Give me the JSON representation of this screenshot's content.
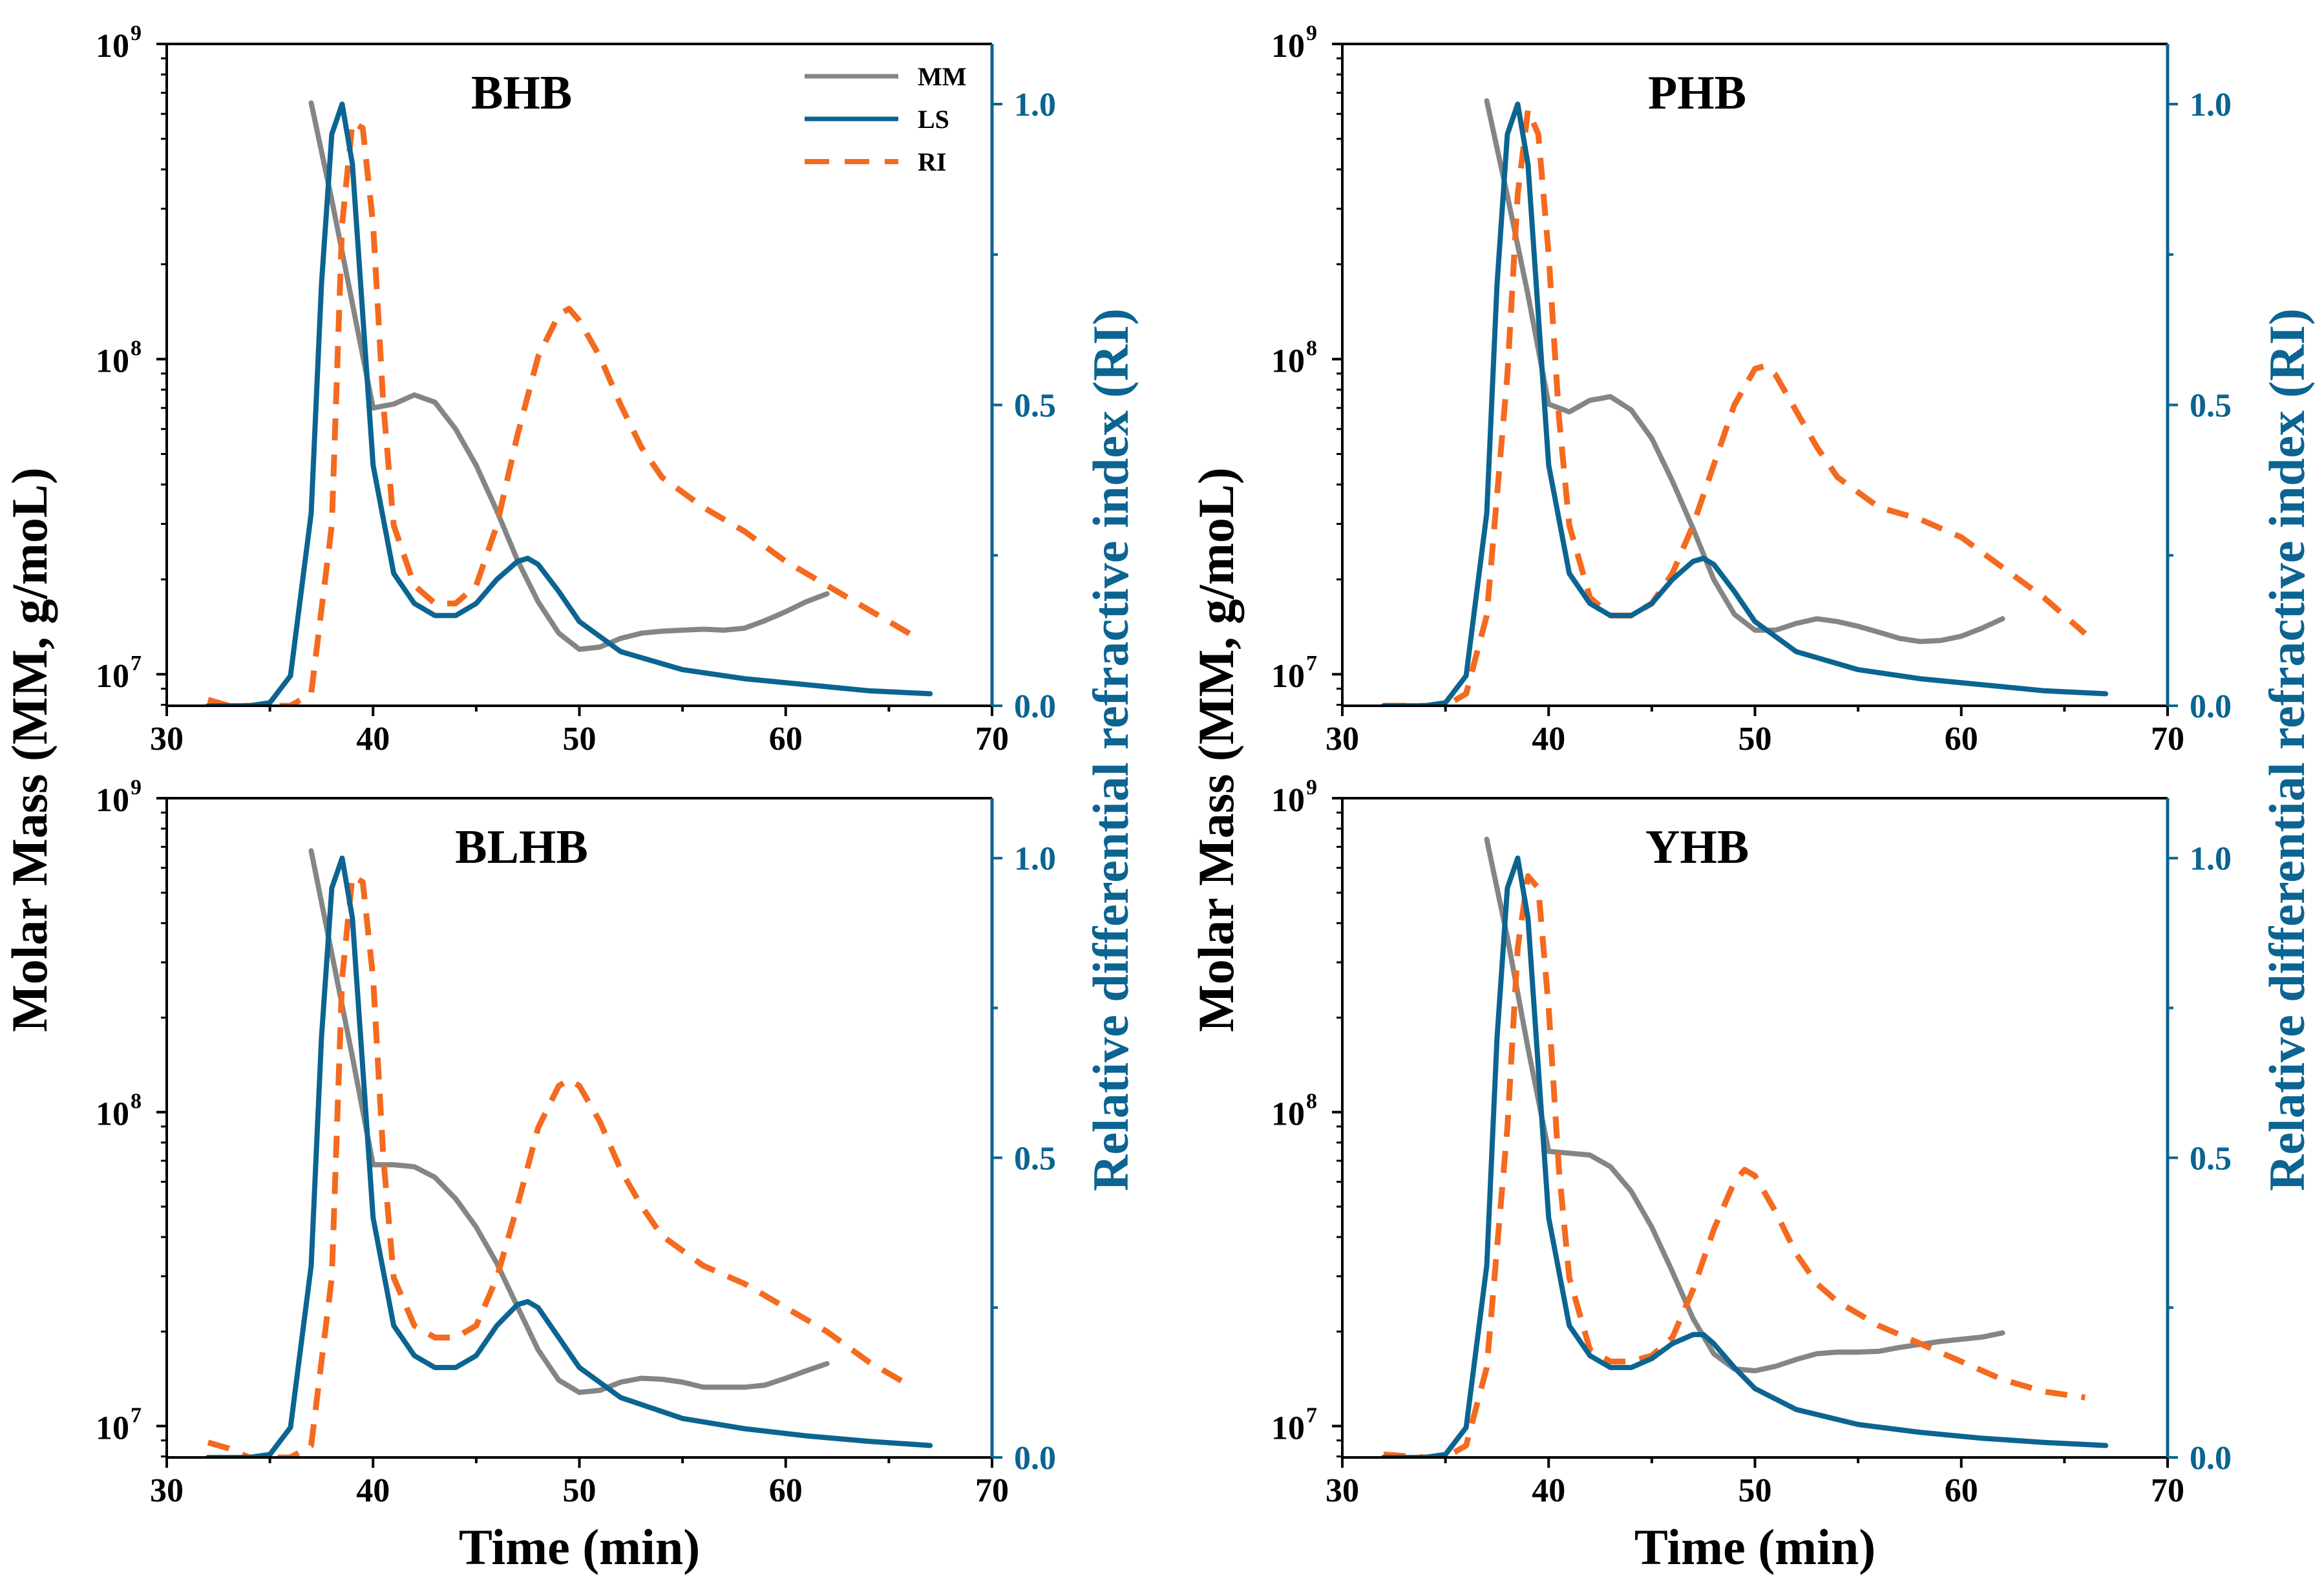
{
  "colors": {
    "mm": "#858585",
    "ls": "#0b6491",
    "ri": "#f46a1f",
    "axis_right": "#0b6491",
    "text": "#000000"
  },
  "axes": {
    "xlabel": "Time (min)",
    "ylabel_left": "Molar Mass (MM, g/moL)",
    "ylabel_right": "Relative differential refractive index (RI)",
    "xlim": [
      30,
      70
    ],
    "xticks": [
      "30",
      "40",
      "50",
      "60",
      "70"
    ],
    "xtick_values": [
      30,
      40,
      50,
      60,
      70
    ],
    "ylim_left_log10": [
      6.9,
      9.0
    ],
    "yticks_left": [
      {
        "base": "10",
        "exp": "7",
        "value": 7
      },
      {
        "base": "10",
        "exp": "8",
        "value": 8
      },
      {
        "base": "10",
        "exp": "9",
        "value": 9
      }
    ],
    "ylim_right": [
      0.0,
      1.1
    ],
    "yticks_right": [
      "0.0",
      "0.5",
      "1.0"
    ],
    "ytick_right_values": [
      0.0,
      0.5,
      1.0
    ]
  },
  "legend": {
    "placement": "top-right of first panel",
    "entries": [
      {
        "label": "MM",
        "series": "mm",
        "style": "solid"
      },
      {
        "label": "LS",
        "series": "ls",
        "style": "solid"
      },
      {
        "label": "RI",
        "series": "ri",
        "style": "dashed"
      }
    ]
  },
  "chart_data": [
    {
      "type": "line",
      "title": "BHB",
      "xlabel": "Time (min)",
      "ylabel": "Molar Mass (MM, g/moL)",
      "ylabel_right": "Relative differential refractive index (RI)",
      "series": [
        {
          "name": "MM",
          "axis": "left",
          "scale": "log",
          "x": [
            37,
            38,
            39,
            40,
            41,
            42,
            43,
            44,
            45,
            46,
            47,
            48,
            49,
            50,
            51,
            52,
            53,
            54,
            55,
            56,
            57,
            58,
            59,
            60,
            61,
            62
          ],
          "values": [
            650000000.0,
            320000000.0,
            150000000.0,
            70000000.0,
            72000000.0,
            77000000.0,
            73000000.0,
            60000000.0,
            46000000.0,
            33000000.0,
            23000000.0,
            17000000.0,
            13500000.0,
            12000000.0,
            12200000.0,
            13000000.0,
            13500000.0,
            13700000.0,
            13800000.0,
            13900000.0,
            13800000.0,
            14000000.0,
            14800000.0,
            15800000.0,
            17000000.0,
            18000000.0
          ]
        },
        {
          "name": "LS",
          "axis": "right",
          "x": [
            32,
            34,
            35,
            36,
            37,
            37.5,
            38,
            38.5,
            39,
            39.5,
            40,
            41,
            42,
            43,
            44,
            45,
            46,
            47,
            47.5,
            48,
            49,
            50,
            52,
            55,
            58,
            61,
            64,
            67
          ],
          "values": [
            0,
            0,
            0.005,
            0.05,
            0.32,
            0.7,
            0.95,
            1.0,
            0.9,
            0.65,
            0.4,
            0.22,
            0.17,
            0.15,
            0.15,
            0.17,
            0.21,
            0.24,
            0.245,
            0.235,
            0.19,
            0.14,
            0.09,
            0.06,
            0.045,
            0.035,
            0.025,
            0.02
          ]
        },
        {
          "name": "RI",
          "axis": "right",
          "x": [
            32,
            33,
            34,
            35,
            36,
            37,
            38,
            38.5,
            39,
            39.5,
            40,
            40.5,
            41,
            42,
            43,
            44,
            45,
            46,
            47,
            48,
            49,
            49.5,
            50,
            51,
            52,
            53,
            54,
            56,
            58,
            60,
            62,
            64,
            66
          ],
          "values": [
            0.01,
            0,
            0,
            0,
            0,
            0.02,
            0.3,
            0.8,
            0.97,
            0.96,
            0.8,
            0.5,
            0.3,
            0.2,
            0.17,
            0.17,
            0.2,
            0.3,
            0.45,
            0.58,
            0.65,
            0.66,
            0.64,
            0.58,
            0.5,
            0.43,
            0.38,
            0.33,
            0.29,
            0.24,
            0.2,
            0.16,
            0.12
          ]
        }
      ]
    },
    {
      "type": "line",
      "title": "PHB",
      "xlabel": "Time (min)",
      "ylabel": "Molar Mass (MM, g/moL)",
      "ylabel_right": "Relative differential refractive index (RI)",
      "series": [
        {
          "name": "MM",
          "axis": "left",
          "scale": "log",
          "x": [
            37,
            38,
            39,
            40,
            41,
            42,
            43,
            44,
            45,
            46,
            47,
            48,
            49,
            50,
            51,
            52,
            53,
            54,
            55,
            56,
            57,
            58,
            59,
            60,
            61,
            62
          ],
          "values": [
            660000000.0,
            330000000.0,
            160000000.0,
            72000000.0,
            68000000.0,
            74000000.0,
            76000000.0,
            69000000.0,
            56000000.0,
            41000000.0,
            29000000.0,
            20000000.0,
            15500000.0,
            13800000.0,
            13800000.0,
            14500000.0,
            15000000.0,
            14700000.0,
            14200000.0,
            13600000.0,
            13000000.0,
            12700000.0,
            12800000.0,
            13200000.0,
            14000000.0,
            15000000.0
          ]
        },
        {
          "name": "LS",
          "axis": "right",
          "x": [
            32,
            34,
            35,
            36,
            37,
            37.5,
            38,
            38.5,
            39,
            39.5,
            40,
            41,
            42,
            43,
            44,
            45,
            46,
            47,
            47.5,
            48,
            49,
            50,
            52,
            55,
            58,
            61,
            64,
            67
          ],
          "values": [
            0,
            0,
            0.005,
            0.05,
            0.32,
            0.7,
            0.95,
            1.0,
            0.9,
            0.65,
            0.4,
            0.22,
            0.17,
            0.15,
            0.15,
            0.17,
            0.21,
            0.24,
            0.245,
            0.235,
            0.19,
            0.14,
            0.09,
            0.06,
            0.045,
            0.035,
            0.025,
            0.02
          ]
        },
        {
          "name": "RI",
          "axis": "right",
          "x": [
            32,
            34,
            35,
            36,
            37,
            38,
            38.5,
            39,
            39.5,
            40,
            40.5,
            41,
            42,
            43,
            44,
            45,
            46,
            47,
            48,
            49,
            50,
            50.5,
            51,
            52,
            53,
            54,
            56,
            58,
            60,
            62,
            64,
            66
          ],
          "values": [
            0,
            0,
            0,
            0.02,
            0.15,
            0.55,
            0.85,
            0.99,
            0.95,
            0.75,
            0.48,
            0.3,
            0.18,
            0.15,
            0.15,
            0.17,
            0.22,
            0.3,
            0.4,
            0.5,
            0.56,
            0.565,
            0.55,
            0.49,
            0.43,
            0.38,
            0.33,
            0.31,
            0.28,
            0.23,
            0.18,
            0.12
          ]
        }
      ]
    },
    {
      "type": "line",
      "title": "BLHB",
      "xlabel": "Time (min)",
      "ylabel": "Molar Mass (MM, g/moL)",
      "ylabel_right": "Relative differential refractive index (RI)",
      "series": [
        {
          "name": "MM",
          "axis": "left",
          "scale": "log",
          "x": [
            37,
            38,
            39,
            40,
            41,
            42,
            43,
            44,
            45,
            46,
            47,
            48,
            49,
            50,
            51,
            52,
            53,
            54,
            55,
            56,
            57,
            58,
            59,
            60,
            61,
            62
          ],
          "values": [
            680000000.0,
            320000000.0,
            150000000.0,
            68000000.0,
            68000000.0,
            67000000.0,
            62000000.0,
            53000000.0,
            43000000.0,
            33000000.0,
            24000000.0,
            17500000.0,
            14000000.0,
            12800000.0,
            13000000.0,
            13800000.0,
            14200000.0,
            14100000.0,
            13800000.0,
            13300000.0,
            13300000.0,
            13300000.0,
            13500000.0,
            14200000.0,
            15000000.0,
            15800000.0
          ]
        },
        {
          "name": "LS",
          "axis": "right",
          "x": [
            32,
            34,
            35,
            36,
            37,
            37.5,
            38,
            38.5,
            39,
            39.5,
            40,
            41,
            42,
            43,
            44,
            45,
            46,
            47,
            47.5,
            48,
            49,
            50,
            52,
            55,
            58,
            61,
            64,
            67
          ],
          "values": [
            0,
            0,
            0.005,
            0.05,
            0.32,
            0.7,
            0.95,
            1.0,
            0.9,
            0.65,
            0.4,
            0.22,
            0.17,
            0.15,
            0.15,
            0.17,
            0.22,
            0.255,
            0.26,
            0.25,
            0.2,
            0.15,
            0.1,
            0.065,
            0.048,
            0.036,
            0.027,
            0.02
          ]
        },
        {
          "name": "RI",
          "axis": "right",
          "x": [
            32,
            33,
            34,
            35,
            36,
            37,
            38,
            38.5,
            39,
            39.5,
            40,
            40.5,
            41,
            42,
            43,
            44,
            45,
            46,
            47,
            48,
            49,
            49.5,
            50,
            51,
            52,
            53,
            54,
            56,
            58,
            60,
            62,
            64,
            66
          ],
          "values": [
            0.025,
            0.015,
            0,
            0,
            0,
            0.02,
            0.3,
            0.8,
            0.97,
            0.96,
            0.8,
            0.5,
            0.3,
            0.22,
            0.2,
            0.2,
            0.22,
            0.3,
            0.42,
            0.55,
            0.62,
            0.63,
            0.62,
            0.56,
            0.48,
            0.42,
            0.37,
            0.32,
            0.29,
            0.25,
            0.21,
            0.16,
            0.12
          ]
        }
      ]
    },
    {
      "type": "line",
      "title": "YHB",
      "xlabel": "Time (min)",
      "ylabel": "Molar Mass (MM, g/moL)",
      "ylabel_right": "Relative differential refractive index (RI)",
      "series": [
        {
          "name": "MM",
          "axis": "left",
          "scale": "log",
          "x": [
            37,
            38,
            39,
            40,
            41,
            42,
            43,
            44,
            45,
            46,
            47,
            48,
            49,
            50,
            51,
            52,
            53,
            54,
            55,
            56,
            57,
            58,
            59,
            60,
            61,
            62
          ],
          "values": [
            740000000.0,
            360000000.0,
            160000000.0,
            75000000.0,
            74000000.0,
            73000000.0,
            67000000.0,
            56000000.0,
            43000000.0,
            31000000.0,
            22000000.0,
            17000000.0,
            15200000.0,
            15000000.0,
            15500000.0,
            16300000.0,
            17000000.0,
            17200000.0,
            17200000.0,
            17300000.0,
            17800000.0,
            18200000.0,
            18600000.0,
            18900000.0,
            19200000.0,
            19800000.0
          ]
        },
        {
          "name": "LS",
          "axis": "right",
          "x": [
            32,
            34,
            35,
            36,
            37,
            37.5,
            38,
            38.5,
            39,
            39.5,
            40,
            41,
            42,
            43,
            44,
            45,
            46,
            47,
            47.5,
            48,
            49,
            50,
            52,
            55,
            58,
            61,
            64,
            67
          ],
          "values": [
            0,
            0,
            0.005,
            0.05,
            0.32,
            0.7,
            0.95,
            1.0,
            0.9,
            0.65,
            0.4,
            0.22,
            0.17,
            0.15,
            0.15,
            0.165,
            0.19,
            0.205,
            0.205,
            0.19,
            0.15,
            0.115,
            0.08,
            0.055,
            0.042,
            0.032,
            0.025,
            0.02
          ]
        },
        {
          "name": "RI",
          "axis": "right",
          "x": [
            32,
            34,
            35,
            36,
            37,
            38,
            38.5,
            39,
            39.5,
            40,
            40.5,
            41,
            42,
            43,
            44,
            45,
            46,
            47,
            48,
            49,
            49.5,
            50,
            51,
            52,
            53,
            54,
            56,
            58,
            60,
            62,
            64,
            66
          ],
          "values": [
            0.005,
            0,
            0,
            0.02,
            0.15,
            0.55,
            0.85,
            0.97,
            0.95,
            0.75,
            0.48,
            0.3,
            0.18,
            0.16,
            0.16,
            0.17,
            0.2,
            0.28,
            0.38,
            0.46,
            0.48,
            0.47,
            0.41,
            0.34,
            0.29,
            0.26,
            0.22,
            0.19,
            0.16,
            0.13,
            0.11,
            0.1
          ]
        }
      ]
    }
  ]
}
